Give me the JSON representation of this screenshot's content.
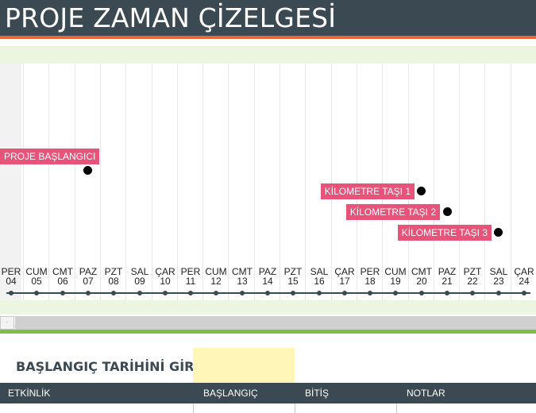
{
  "header": {
    "title": "PROJE ZAMAN ÇİZELGESİ"
  },
  "colors": {
    "header": "#3b4a52",
    "accent": "#e8683a",
    "milestone": "#e8537a",
    "band": "#ebf5e0",
    "scroll_accent": "#7cc04b",
    "input": "#fff6b8"
  },
  "timeline": {
    "days": [
      {
        "name": "PER",
        "num": "04"
      },
      {
        "name": "CUM",
        "num": "05"
      },
      {
        "name": "CMT",
        "num": "06"
      },
      {
        "name": "PAZ",
        "num": "07"
      },
      {
        "name": "PZT",
        "num": "08"
      },
      {
        "name": "SAL",
        "num": "09"
      },
      {
        "name": "ÇAR",
        "num": "10"
      },
      {
        "name": "PER",
        "num": "11"
      },
      {
        "name": "CUM",
        "num": "12"
      },
      {
        "name": "CMT",
        "num": "13"
      },
      {
        "name": "PAZ",
        "num": "14"
      },
      {
        "name": "PZT",
        "num": "15"
      },
      {
        "name": "SAL",
        "num": "16"
      },
      {
        "name": "ÇAR",
        "num": "17"
      },
      {
        "name": "PER",
        "num": "18"
      },
      {
        "name": "CUM",
        "num": "19"
      },
      {
        "name": "CMT",
        "num": "20"
      },
      {
        "name": "PAZ",
        "num": "21"
      },
      {
        "name": "PZT",
        "num": "22"
      },
      {
        "name": "SAL",
        "num": "23"
      },
      {
        "name": "ÇAR",
        "num": "24"
      }
    ],
    "milestones": [
      {
        "label": "PROJE BAŞLANGICI",
        "day_index": 3
      },
      {
        "label": "KİLOMETRE TAŞI 1",
        "day_index": 16
      },
      {
        "label": "KİLOMETRE TAŞI 2",
        "day_index": 17
      },
      {
        "label": "KİLOMETRE TAŞI 3",
        "day_index": 19
      }
    ]
  },
  "start_date": {
    "label": "BAŞLANGIÇ TARİHİNİ GİRİN:",
    "value": ""
  },
  "table": {
    "headers": [
      "ETKİNLİK",
      "BAŞLANGIÇ",
      "BİTİŞ",
      "NOTLAR"
    ]
  }
}
